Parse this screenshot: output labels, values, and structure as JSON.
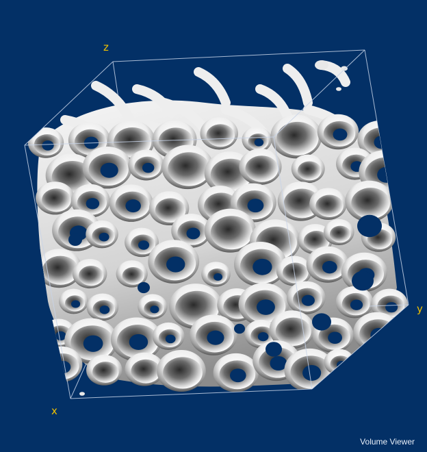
{
  "app": {
    "title": "Volume Viewer"
  },
  "axes": {
    "x_label": "x",
    "y_label": "y",
    "z_label": "z"
  },
  "colors": {
    "background": "#033066",
    "bounding_box": "#c8d4e8",
    "axis_label": "#f2c200",
    "surface_light": "#ffffff",
    "surface_shadow": "#3c3c3c"
  },
  "visualization": {
    "subject": "porous foam microstructure",
    "rendering": "isosurface",
    "bounding_box": "wireframe cube"
  }
}
